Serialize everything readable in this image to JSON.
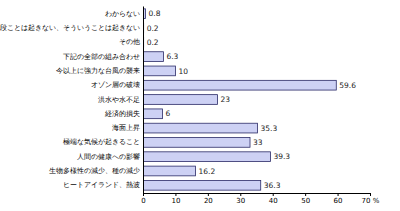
{
  "chart_data": {
    "type": "bar",
    "orientation": "horizontal",
    "categories": [
      "わからない",
      "特段ことは起きない、そういうことは起きない",
      "その他",
      "下記の全部の組み合わせ",
      "今以上に強力な台風の襲来",
      "オゾン層の破壊",
      "洪水や水不足",
      "経済的損失",
      "海面上昇",
      "極端な気候が起きること",
      "人間の健康への影響",
      "生物多様性の減少、種の減少",
      "ヒートアイランド、熱波"
    ],
    "values": [
      0.8,
      0.2,
      0.2,
      6.3,
      10,
      59.6,
      23,
      6,
      35.3,
      33,
      39.3,
      16.2,
      36.3
    ],
    "color": "#cdd1f4",
    "xlim": [
      0,
      70
    ],
    "xticks": [
      0,
      10,
      20,
      30,
      40,
      50,
      60,
      {
        "value": 70,
        "label": "70 %"
      }
    ],
    "data_labels": true,
    "grid": false
  }
}
